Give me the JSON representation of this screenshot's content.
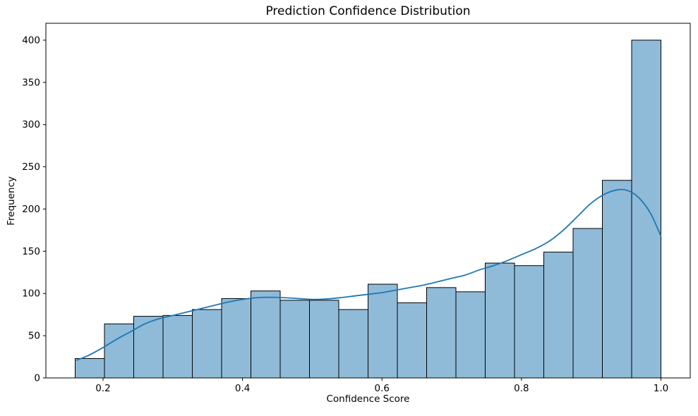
{
  "chart_data": {
    "type": "bar",
    "subtype": "histogram-with-kde",
    "title": "Prediction Confidence Distribution",
    "xlabel": "Confidence Score",
    "ylabel": "Frequency",
    "xlim": [
      0.118,
      1.042
    ],
    "ylim": [
      0,
      420
    ],
    "grid": false,
    "legend": "none",
    "x_ticks": [
      0.2,
      0.4,
      0.6,
      0.8,
      1.0
    ],
    "x_tick_labels": [
      "0.2",
      "0.4",
      "0.6",
      "0.8",
      "1.0"
    ],
    "y_ticks": [
      0,
      50,
      100,
      150,
      200,
      250,
      300,
      350,
      400
    ],
    "y_tick_labels": [
      "0",
      "50",
      "100",
      "150",
      "200",
      "250",
      "300",
      "350",
      "400"
    ],
    "bin_edges": [
      0.16,
      0.202,
      0.244,
      0.286,
      0.328,
      0.37,
      0.412,
      0.454,
      0.496,
      0.538,
      0.58,
      0.622,
      0.664,
      0.706,
      0.748,
      0.79,
      0.832,
      0.874,
      0.916,
      0.958,
      1.0
    ],
    "frequencies": [
      23,
      64,
      73,
      74,
      81,
      94,
      103,
      92,
      92,
      81,
      111,
      89,
      107,
      102,
      136,
      133,
      149,
      177,
      234,
      400
    ],
    "kde_curve": {
      "name": "kde-density-line",
      "points": [
        [
          0.162,
          21
        ],
        [
          0.18,
          27
        ],
        [
          0.2,
          36
        ],
        [
          0.22,
          46
        ],
        [
          0.24,
          55
        ],
        [
          0.26,
          64
        ],
        [
          0.28,
          70
        ],
        [
          0.3,
          74
        ],
        [
          0.32,
          78
        ],
        [
          0.34,
          82
        ],
        [
          0.36,
          86
        ],
        [
          0.38,
          90
        ],
        [
          0.4,
          93
        ],
        [
          0.42,
          95
        ],
        [
          0.44,
          95.5
        ],
        [
          0.46,
          95
        ],
        [
          0.48,
          94
        ],
        [
          0.5,
          93
        ],
        [
          0.52,
          93.5
        ],
        [
          0.54,
          95
        ],
        [
          0.56,
          97
        ],
        [
          0.58,
          99
        ],
        [
          0.6,
          101
        ],
        [
          0.62,
          104
        ],
        [
          0.64,
          107
        ],
        [
          0.66,
          110
        ],
        [
          0.68,
          114
        ],
        [
          0.7,
          118
        ],
        [
          0.72,
          122
        ],
        [
          0.74,
          128
        ],
        [
          0.76,
          133
        ],
        [
          0.78,
          139
        ],
        [
          0.8,
          146
        ],
        [
          0.82,
          153
        ],
        [
          0.84,
          162
        ],
        [
          0.86,
          175
        ],
        [
          0.88,
          191
        ],
        [
          0.9,
          207
        ],
        [
          0.92,
          218
        ],
        [
          0.94,
          223
        ],
        [
          0.955,
          221
        ],
        [
          0.97,
          212
        ],
        [
          0.985,
          195
        ],
        [
          1.0,
          168
        ]
      ]
    },
    "colors": {
      "bar_fill": "#8fbbd9",
      "bar_edge": "#000000",
      "kde_line": "#1f77b4",
      "spine": "#000000",
      "tick_text": "#000000",
      "background": "#ffffff"
    }
  }
}
